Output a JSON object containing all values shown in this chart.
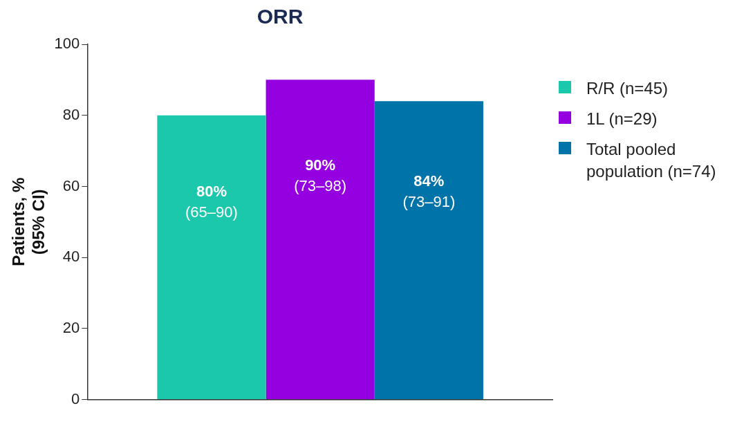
{
  "chart_data": {
    "type": "bar",
    "title": "ORR",
    "ylabel": "Patients, %\n(95% CI)",
    "categories": [
      null
    ],
    "ylim": [
      0,
      100
    ],
    "yticks": [
      0,
      20,
      40,
      60,
      80,
      100
    ],
    "grid": false,
    "legend": "right",
    "series": [
      {
        "name": "R/R (n=45)",
        "color": "#1cc8ac",
        "values": [
          80
        ],
        "value_labels": [
          "80%\n(65–90)"
        ]
      },
      {
        "name": "1L (n=29)",
        "color": "#9400e0",
        "values": [
          90
        ],
        "value_labels": [
          "90%\n(73–98)"
        ]
      },
      {
        "name": "Total pooled population (n=74)",
        "color": "#0073a8",
        "values": [
          84
        ],
        "value_labels": [
          "84%\n(73–91)"
        ]
      }
    ]
  }
}
